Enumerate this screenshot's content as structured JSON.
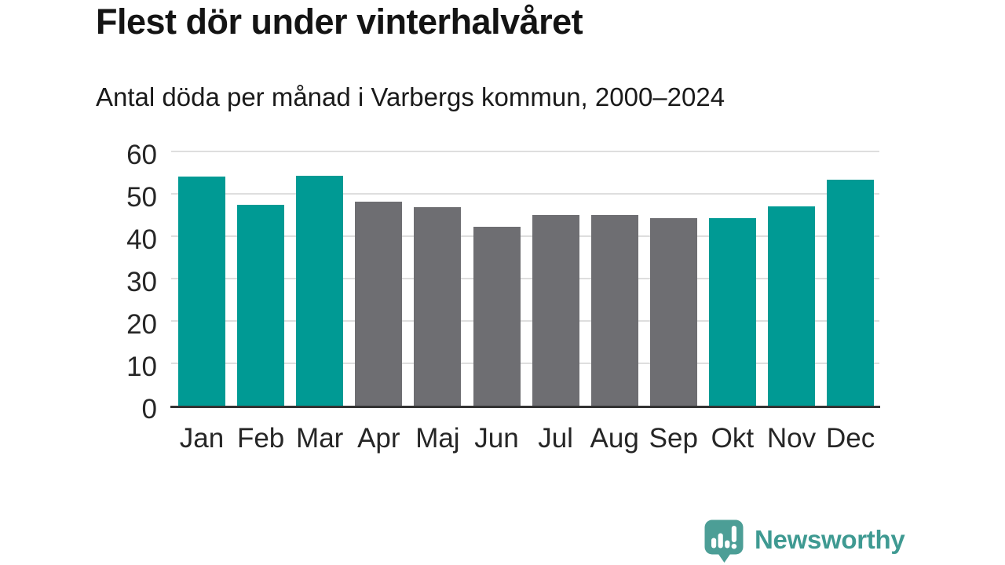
{
  "header": {
    "title": "Flest dör under vinterhalvåret",
    "subtitle": "Antal döda per månad i Varbergs kommun, 2000–2024"
  },
  "chart_data": {
    "type": "bar",
    "title": "Flest dör under vinterhalvåret",
    "subtitle": "Antal döda per månad i Varbergs kommun, 2000–2024",
    "categories": [
      "Jan",
      "Feb",
      "Mar",
      "Apr",
      "Maj",
      "Jun",
      "Jul",
      "Aug",
      "Sep",
      "Okt",
      "Nov",
      "Dec"
    ],
    "values": [
      54.1,
      47.5,
      54.2,
      48.2,
      46.8,
      42.3,
      45.0,
      45.0,
      44.2,
      44.3,
      47.1,
      53.4
    ],
    "bar_color_keys": [
      "winter",
      "winter",
      "winter",
      "summer",
      "summer",
      "summer",
      "summer",
      "summer",
      "summer",
      "winter",
      "winter",
      "winter"
    ],
    "colors": {
      "winter": "#009a94",
      "summer": "#6e6e72"
    },
    "xlabel": "",
    "ylabel": "",
    "ylim": [
      0,
      60
    ],
    "yticks": [
      0,
      10,
      20,
      30,
      40,
      50,
      60
    ],
    "grid": "horizontal-only",
    "legend": "none",
    "gridline_color": "#dedede",
    "axis_line_color": "#333333",
    "tick_label_color": "#262626"
  },
  "footer": {
    "brand": "Newsworthy",
    "brand_color": "#3f9a92",
    "logo_color": "#4c9e96"
  }
}
